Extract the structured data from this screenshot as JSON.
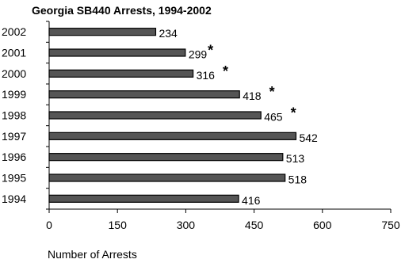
{
  "chart_data": {
    "type": "bar",
    "orientation": "horizontal",
    "title": "Georgia SB440 Arrests, 1994-2002",
    "xlabel": "Number of Arrests",
    "ylabel": "",
    "categories": [
      "2002",
      "2001",
      "2000",
      "1999",
      "1998",
      "1997",
      "1996",
      "1995",
      "1994"
    ],
    "values": [
      234,
      299,
      316,
      418,
      465,
      542,
      513,
      518,
      416
    ],
    "value_labels": [
      "234",
      "299",
      "316",
      "418",
      "465",
      "542",
      "513",
      "518",
      "416"
    ],
    "annotations": [
      "",
      "*",
      "*",
      "*",
      "*",
      "",
      "",
      "",
      ""
    ],
    "xlim": [
      0,
      750
    ],
    "xticks": [
      "0",
      "150",
      "300",
      "450",
      "600",
      "750"
    ],
    "grid": false,
    "legend": "none",
    "colors": {
      "bar_fill": "#555555",
      "bar_stroke": "#000000",
      "axis": "#000000"
    }
  }
}
